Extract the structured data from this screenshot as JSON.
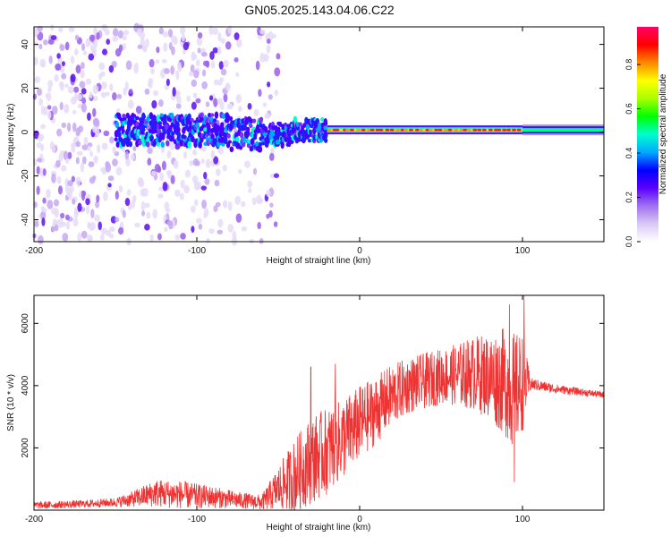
{
  "title": "GN05.2025.143.04.06.C22",
  "chart_data": [
    {
      "type": "heatmap",
      "name": "spectrogram",
      "xlabel": "Height of straight line (km)",
      "ylabel": "Frequency (Hz)",
      "xlim": [
        -200,
        150
      ],
      "ylim": [
        -50,
        48
      ],
      "xticks": [
        -200,
        -100,
        0,
        100
      ],
      "xtick_labels": [
        "-200",
        "-100",
        "0",
        "100"
      ],
      "yticks": [
        -40,
        -20,
        0,
        20,
        40
      ],
      "ytick_labels": [
        "-40",
        "-20",
        "0",
        "20",
        "40"
      ],
      "colorbar": {
        "label": "Normalized spectral amplitude",
        "range": [
          0,
          0.97
        ],
        "ticks": [
          0.0,
          0.2,
          0.4,
          0.6,
          0.8
        ],
        "tick_labels": [
          "0.0",
          "0.2",
          "0.4",
          "0.6",
          "0.8"
        ],
        "colors": [
          "#ffffff",
          "#d9c8f5",
          "#a070f0",
          "#5a00ff",
          "#0000ff",
          "#00aaff",
          "#00ffcc",
          "#00ff00",
          "#aaff00",
          "#ffff00",
          "#ff8800",
          "#ff0000",
          "#ff0066"
        ]
      },
      "features": {
        "noise_region_km": [
          -200,
          -60
        ],
        "band_center_hz": 1,
        "band_width_hz_bright_segment": 1.5,
        "bright_segment_km": [
          -20,
          100
        ],
        "smooth_segment_km": [
          100,
          150
        ]
      }
    },
    {
      "type": "line",
      "name": "snr",
      "xlabel": "Height of straight line (km)",
      "ylabel": "SNR (10 * v/v)",
      "xlim": [
        -200,
        150
      ],
      "ylim": [
        0,
        6900
      ],
      "xticks": [
        -200,
        -100,
        0,
        100
      ],
      "xtick_labels": [
        "-200",
        "-100",
        "0",
        "100"
      ],
      "yticks": [
        2000,
        4000,
        6000
      ],
      "ytick_labels": [
        "2000",
        "4000",
        "6000"
      ],
      "color": "#ee3333",
      "envelope": {
        "x": [
          -200,
          -170,
          -150,
          -140,
          -125,
          -110,
          -100,
          -90,
          -80,
          -70,
          -60,
          -50,
          -40,
          -30,
          -20,
          -10,
          0,
          10,
          20,
          30,
          40,
          50,
          60,
          70,
          80,
          90,
          95,
          100,
          105,
          120,
          135,
          150
        ],
        "mean": [
          150,
          200,
          250,
          350,
          550,
          500,
          450,
          420,
          350,
          300,
          250,
          700,
          1100,
          1600,
          1900,
          2300,
          2800,
          3200,
          3700,
          4000,
          4150,
          4300,
          4350,
          4400,
          4300,
          4100,
          3800,
          4100,
          4050,
          3900,
          3800,
          3700
        ],
        "spread": [
          120,
          120,
          150,
          250,
          450,
          450,
          400,
          350,
          300,
          250,
          250,
          700,
          1200,
          1400,
          1400,
          1300,
          1200,
          1100,
          1000,
          900,
          900,
          900,
          1000,
          1200,
          1400,
          1800,
          1900,
          1600,
          200,
          150,
          120,
          100
        ]
      },
      "spikes": [
        {
          "x": -30,
          "y": 4600
        },
        {
          "x": -15,
          "y": 4700
        },
        {
          "x": 92,
          "y": 6600
        },
        {
          "x": 95,
          "y": 900
        },
        {
          "x": 101,
          "y": 6900
        }
      ]
    }
  ]
}
